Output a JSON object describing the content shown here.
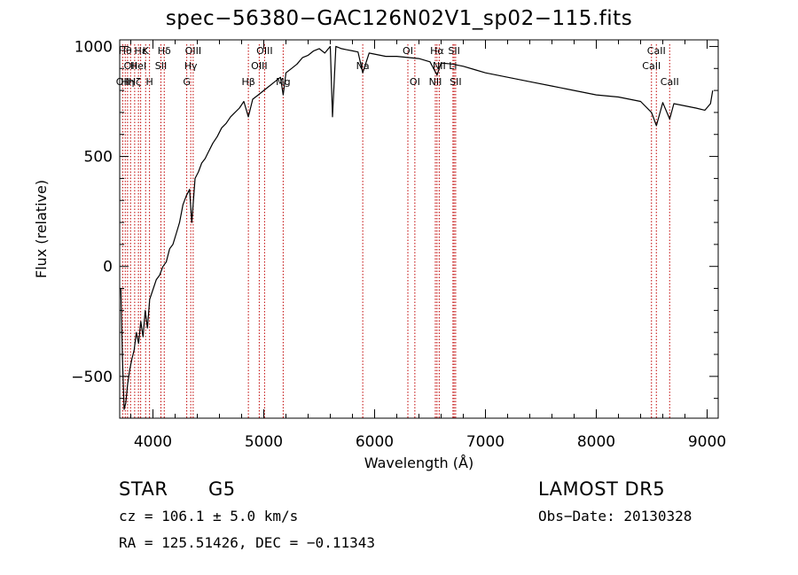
{
  "chart_data": {
    "type": "line",
    "title": "spec−56380−GAC126N02V1_sp02−115.fits",
    "xlabel": "Wavelength (Å)",
    "ylabel": "Flux (relative)",
    "xlim": [
      3700,
      9100
    ],
    "ylim": [
      -690,
      1030
    ],
    "xticks": [
      4000,
      5000,
      6000,
      7000,
      8000,
      9000
    ],
    "yticks": [
      -500,
      0,
      500,
      1000
    ],
    "grid": false,
    "line_color": "#000000",
    "marker_color": "#c00000",
    "series": [
      {
        "x": [
          3710,
          3725,
          3740,
          3755,
          3770,
          3790,
          3810,
          3830,
          3850,
          3870,
          3890,
          3910,
          3930,
          3950,
          3970,
          3990,
          4010,
          4030,
          4060,
          4090,
          4120,
          4150,
          4180,
          4210,
          4240,
          4270,
          4300,
          4330,
          4350,
          4380,
          4410,
          4440,
          4470,
          4500,
          4540,
          4580,
          4620,
          4660,
          4700,
          4740,
          4780,
          4820,
          4861,
          4900,
          4950,
          5000,
          5050,
          5100,
          5150,
          5175,
          5200,
          5250,
          5300,
          5350,
          5400,
          5450,
          5500,
          5550,
          5600,
          5620,
          5650,
          5700,
          5750,
          5800,
          5850,
          5893,
          5950,
          6000,
          6050,
          6100,
          6200,
          6300,
          6400,
          6500,
          6563,
          6600,
          6700,
          6800,
          6900,
          7000,
          7200,
          7400,
          7600,
          7800,
          8000,
          8200,
          8400,
          8498,
          8542,
          8600,
          8662,
          8700,
          8800,
          8900,
          8980,
          9030,
          9050
        ],
        "values": [
          -100,
          -420,
          -650,
          -620,
          -540,
          -470,
          -420,
          -380,
          -300,
          -350,
          -250,
          -320,
          -200,
          -280,
          -150,
          -120,
          -90,
          -60,
          -40,
          0,
          20,
          80,
          100,
          150,
          200,
          280,
          320,
          350,
          200,
          400,
          430,
          470,
          490,
          520,
          560,
          590,
          630,
          650,
          680,
          700,
          720,
          750,
          680,
          760,
          780,
          800,
          820,
          840,
          860,
          780,
          880,
          900,
          920,
          950,
          960,
          980,
          990,
          970,
          1000,
          680,
          1000,
          990,
          985,
          980,
          975,
          880,
          970,
          965,
          960,
          955,
          955,
          950,
          945,
          930,
          870,
          925,
          920,
          910,
          895,
          880,
          860,
          840,
          820,
          800,
          780,
          770,
          750,
          700,
          640,
          745,
          670,
          740,
          730,
          720,
          710,
          740,
          800
        ]
      }
    ],
    "line_markers": [
      {
        "x": 3727,
        "label": "OII",
        "row": 3
      },
      {
        "x": 3750,
        "label": "Hθ",
        "row": 1
      },
      {
        "x": 3771,
        "label": "Hη",
        "row": 3
      },
      {
        "x": 3798,
        "label": "OII",
        "row": 2
      },
      {
        "x": 3835,
        "label": "Hζ",
        "row": 3
      },
      {
        "x": 3869,
        "label": "HeI",
        "row": 2
      },
      {
        "x": 3889,
        "label": "Hε",
        "row": 1
      },
      {
        "x": 3934,
        "label": "K",
        "row": 1
      },
      {
        "x": 3969,
        "label": "H",
        "row": 3
      },
      {
        "x": 4072,
        "label": "SII",
        "row": 2
      },
      {
        "x": 4102,
        "label": "Hδ",
        "row": 1
      },
      {
        "x": 4305,
        "label": "G",
        "row": 3
      },
      {
        "x": 4341,
        "label": "Hγ",
        "row": 2
      },
      {
        "x": 4363,
        "label": "OIII",
        "row": 1
      },
      {
        "x": 4861,
        "label": "Hβ",
        "row": 3
      },
      {
        "x": 4959,
        "label": "OIII",
        "row": 2
      },
      {
        "x": 5007,
        "label": "OIII",
        "row": 1
      },
      {
        "x": 5175,
        "label": "Mg",
        "row": 3
      },
      {
        "x": 5893,
        "label": "Na",
        "row": 2
      },
      {
        "x": 6300,
        "label": "OI",
        "row": 1
      },
      {
        "x": 6363,
        "label": "OI",
        "row": 3
      },
      {
        "x": 6548,
        "label": "NII",
        "row": 3
      },
      {
        "x": 6563,
        "label": "Hα",
        "row": 1
      },
      {
        "x": 6583,
        "label": "NII",
        "row": 2
      },
      {
        "x": 6707,
        "label": "Li",
        "row": 2
      },
      {
        "x": 6717,
        "label": "SII",
        "row": 1
      },
      {
        "x": 6731,
        "label": "SII",
        "row": 3
      },
      {
        "x": 8498,
        "label": "CaII",
        "row": 2
      },
      {
        "x": 8542,
        "label": "CaII",
        "row": 1
      },
      {
        "x": 8662,
        "label": "CaII",
        "row": 3
      }
    ]
  },
  "info": {
    "object_class": "STAR",
    "subclass": "G5",
    "survey": "LAMOST DR5",
    "cz": "cz = 106.1 ± 5.0 km/s",
    "obs_date": "Obs−Date: 20130328",
    "coords": "RA = 125.51426, DEC =  −0.11343"
  }
}
